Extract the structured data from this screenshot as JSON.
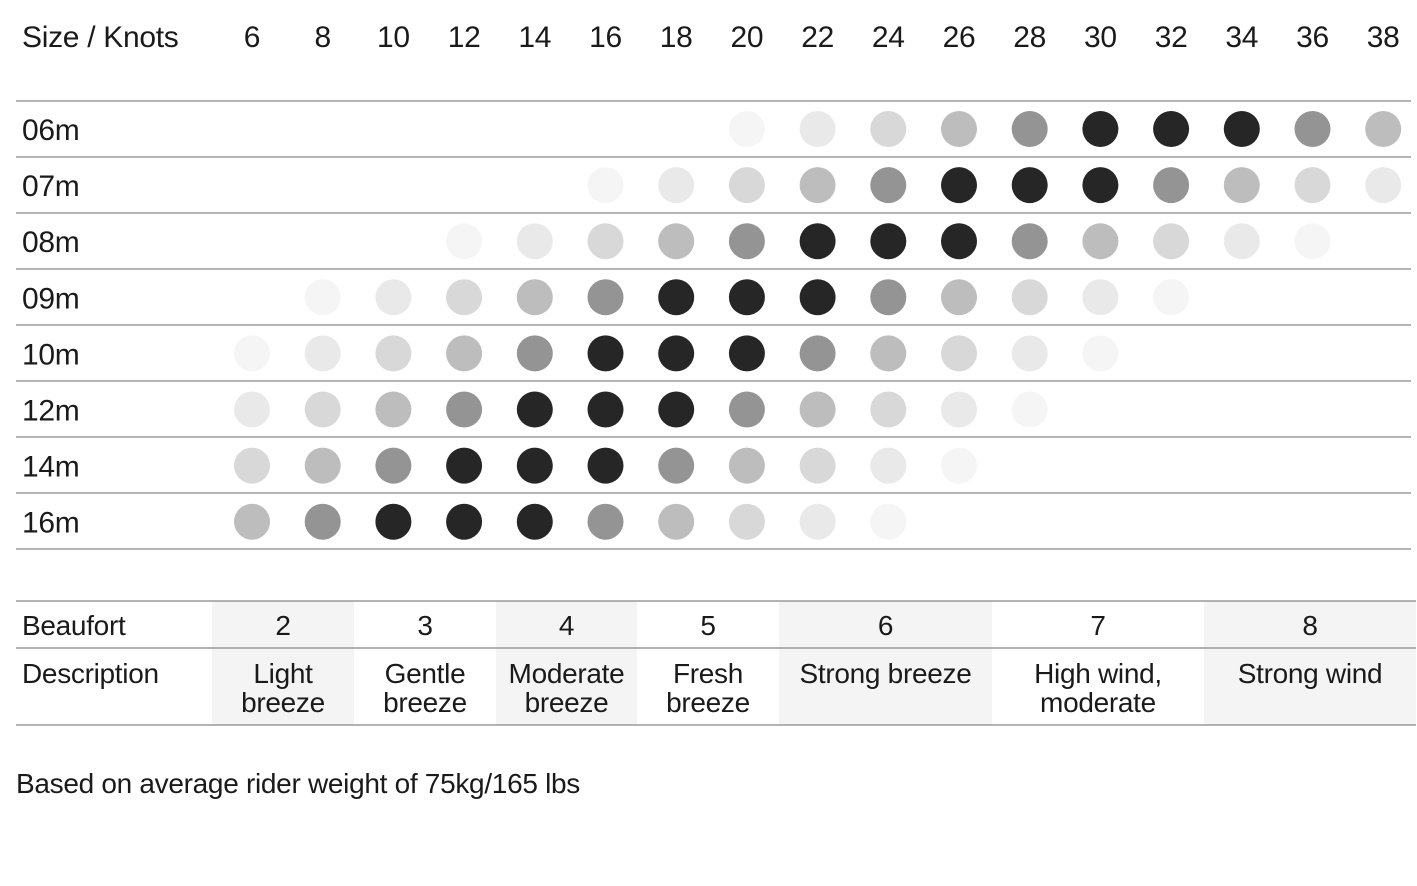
{
  "chart_data": {
    "type": "heatmap",
    "corner_label": "Size / Knots",
    "x": [
      "6",
      "8",
      "10",
      "12",
      "14",
      "16",
      "18",
      "20",
      "22",
      "24",
      "26",
      "28",
      "30",
      "32",
      "34",
      "36",
      "38"
    ],
    "rows": [
      {
        "label": "06m",
        "levels": [
          0,
          0,
          0,
          0,
          0,
          0,
          0,
          1,
          2,
          3,
          4,
          5,
          6,
          6,
          6,
          5,
          4
        ]
      },
      {
        "label": "07m",
        "levels": [
          0,
          0,
          0,
          0,
          0,
          1,
          2,
          3,
          4,
          5,
          6,
          6,
          6,
          5,
          4,
          3,
          2
        ]
      },
      {
        "label": "08m",
        "levels": [
          0,
          0,
          0,
          1,
          2,
          3,
          4,
          5,
          6,
          6,
          6,
          5,
          4,
          3,
          2,
          1,
          0
        ]
      },
      {
        "label": "09m",
        "levels": [
          0,
          1,
          2,
          3,
          4,
          5,
          6,
          6,
          6,
          5,
          4,
          3,
          2,
          1,
          0,
          0,
          0
        ]
      },
      {
        "label": "10m",
        "levels": [
          1,
          2,
          3,
          4,
          5,
          6,
          6,
          6,
          5,
          4,
          3,
          2,
          1,
          0,
          0,
          0,
          0
        ]
      },
      {
        "label": "12m",
        "levels": [
          2,
          3,
          4,
          5,
          6,
          6,
          6,
          5,
          4,
          3,
          2,
          1,
          0,
          0,
          0,
          0,
          0
        ]
      },
      {
        "label": "14m",
        "levels": [
          3,
          4,
          5,
          6,
          6,
          6,
          5,
          4,
          3,
          2,
          1,
          0,
          0,
          0,
          0,
          0,
          0
        ]
      },
      {
        "label": "16m",
        "levels": [
          4,
          5,
          6,
          6,
          6,
          5,
          4,
          3,
          2,
          1,
          0,
          0,
          0,
          0,
          0,
          0,
          0
        ]
      }
    ],
    "level_colors": [
      "",
      "#f5f5f5",
      "#e9e9e9",
      "#d8d8d8",
      "#bdbdbd",
      "#949494",
      "#262626"
    ]
  },
  "beaufort": {
    "header_label": "Beaufort",
    "desc_label": "Description",
    "scale": [
      {
        "force": "2",
        "desc": [
          "Light",
          "breeze"
        ]
      },
      {
        "force": "3",
        "desc": [
          "Gentle",
          "breeze"
        ]
      },
      {
        "force": "4",
        "desc": [
          "Moderate",
          "breeze"
        ]
      },
      {
        "force": "5",
        "desc": [
          "Fresh",
          "breeze"
        ]
      },
      {
        "force": "6",
        "desc": [
          "Strong breeze"
        ]
      },
      {
        "force": "7",
        "desc": [
          "High wind,",
          "moderate"
        ]
      },
      {
        "force": "8",
        "desc": [
          "Strong wind"
        ]
      }
    ],
    "shade_color": "#f4f4f4"
  },
  "footnote": "Based on average rider weight of 75kg/165 lbs"
}
